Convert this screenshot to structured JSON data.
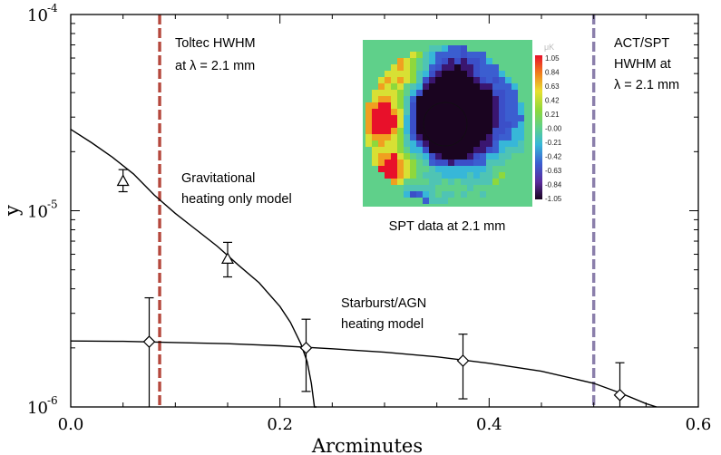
{
  "chart_data": {
    "type": "scatter",
    "title": "",
    "xlabel": "Arcminutes",
    "ylabel": "y",
    "xscale": "linear",
    "yscale": "log",
    "xlim": [
      0.0,
      0.6
    ],
    "ylim": [
      1e-06,
      0.0001
    ],
    "x_ticks": [
      0.0,
      0.2,
      0.4,
      0.6
    ],
    "x_tick_labels": [
      "0.0",
      "0.2",
      "0.4",
      "0.6"
    ],
    "y_tick_labels": [
      {
        "value": 0.0001,
        "base": "10",
        "exp": "-4"
      },
      {
        "value": 1e-05,
        "base": "10",
        "exp": "-5"
      },
      {
        "value": 1e-06,
        "base": "10",
        "exp": "-6"
      }
    ],
    "grid": false,
    "series": [
      {
        "marker": "triangle",
        "points": [
          {
            "x": 0.05,
            "y": 1.42e-05,
            "ylo": 1.25e-05,
            "yhi": 1.62e-05
          },
          {
            "x": 0.15,
            "y": 5.7e-06,
            "ylo": 4.6e-06,
            "yhi": 6.9e-06
          }
        ]
      },
      {
        "marker": "diamond",
        "points": [
          {
            "x": 0.075,
            "y": 2.15e-06,
            "ylo": 5e-07,
            "yhi": 3.6e-06
          },
          {
            "x": 0.225,
            "y": 2e-06,
            "ylo": 1.2e-06,
            "yhi": 2.8e-06
          },
          {
            "x": 0.375,
            "y": 1.72e-06,
            "ylo": 1.1e-06,
            "yhi": 2.35e-06
          },
          {
            "x": 0.525,
            "y": 1.15e-06,
            "ylo": 7e-07,
            "yhi": 1.68e-06
          }
        ]
      }
    ],
    "model_curves": [
      {
        "label": [
          "Gravitational",
          "heating only model"
        ],
        "points": [
          [
            0.0,
            2.6e-05
          ],
          [
            0.02,
            2.22e-05
          ],
          [
            0.04,
            1.87e-05
          ],
          [
            0.06,
            1.54e-05
          ],
          [
            0.08,
            1.2e-05
          ],
          [
            0.1,
            9.7e-06
          ],
          [
            0.12,
            8e-06
          ],
          [
            0.14,
            6.6e-06
          ],
          [
            0.16,
            5.3e-06
          ],
          [
            0.18,
            4.3e-06
          ],
          [
            0.2,
            3.25e-06
          ],
          [
            0.21,
            2.7e-06
          ],
          [
            0.22,
            2.1e-06
          ],
          [
            0.226,
            1.7e-06
          ],
          [
            0.23,
            1.32e-06
          ],
          [
            0.233,
            1e-06
          ],
          [
            0.235,
            8.5e-07
          ]
        ]
      },
      {
        "label": [
          "Starburst/AGN",
          "heating model"
        ],
        "points": [
          [
            0.0,
            2.17e-06
          ],
          [
            0.05,
            2.16e-06
          ],
          [
            0.1,
            2.13e-06
          ],
          [
            0.15,
            2.1e-06
          ],
          [
            0.2,
            2.05e-06
          ],
          [
            0.25,
            1.98e-06
          ],
          [
            0.3,
            1.9e-06
          ],
          [
            0.35,
            1.8e-06
          ],
          [
            0.4,
            1.67e-06
          ],
          [
            0.45,
            1.52e-06
          ],
          [
            0.5,
            1.32e-06
          ],
          [
            0.525,
            1.18e-06
          ],
          [
            0.55,
            1.04e-06
          ],
          [
            0.56,
            9.8e-07
          ]
        ]
      }
    ],
    "reference_lines": [
      {
        "x": 0.085,
        "color": "#b5483d",
        "label": [
          "Toltec HWHM",
          "at λ = 2.1 mm"
        ]
      },
      {
        "x": 0.5,
        "color": "#8b7fab",
        "label": [
          "ACT/SPT",
          "HWHM at",
          "λ = 2.1 mm"
        ]
      }
    ],
    "inset": {
      "caption": "SPT data at 2.1 mm",
      "colorbar_unit": "μK",
      "colorbar_labels": [
        "1.05",
        "0.84",
        "0.63",
        "0.42",
        "0.21",
        "-0.00",
        "-0.21",
        "-0.42",
        "-0.63",
        "-0.84",
        "-1.05"
      ]
    }
  }
}
